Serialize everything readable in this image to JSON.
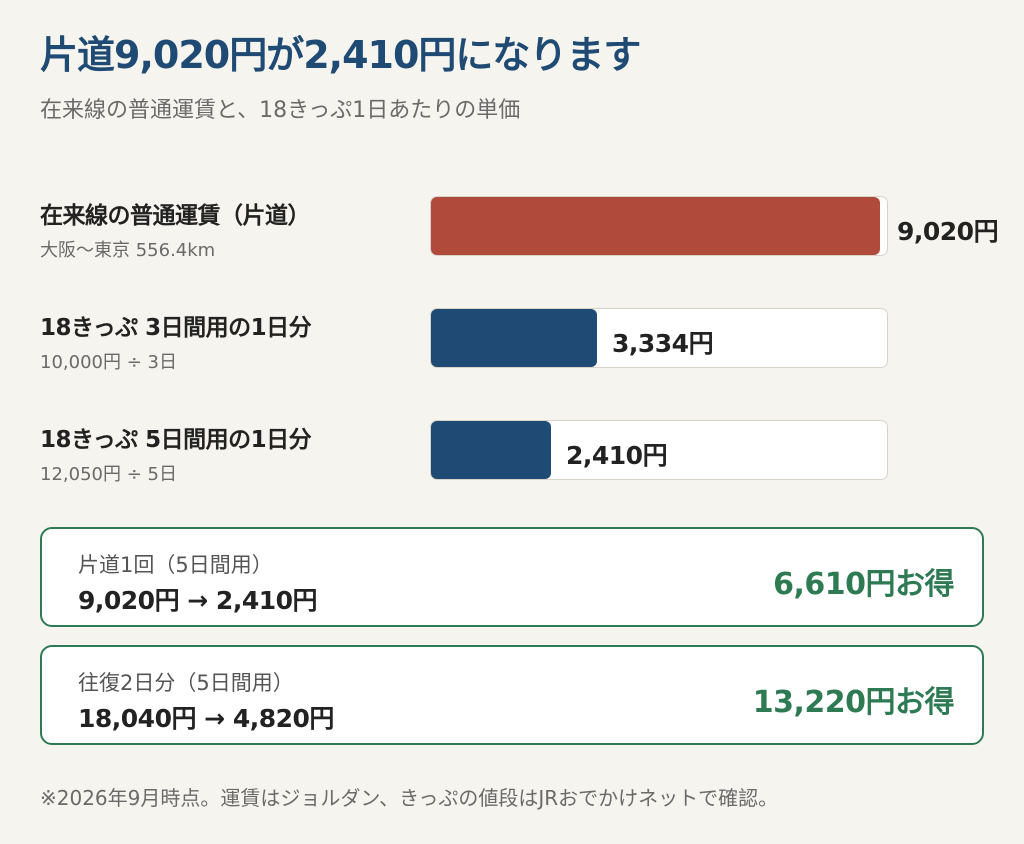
{
  "title": "片道9,020円が2,410円になります",
  "subtitle": "在来線の普通運賃と、18きっぷ1日あたりの単価",
  "colors": {
    "fare": "#b04a3a",
    "ticket": "#1f4a73",
    "saving": "#2e7a53"
  },
  "chart_data": {
    "type": "bar",
    "orientation": "horizontal",
    "categories": [
      "在来線の普通運賃（片道）",
      "18きっぷ 3日間用の1日分",
      "18きっぷ 5日間用の1日分"
    ],
    "sublabels": [
      "大阪〜東京 556.4km",
      "10,000円 ÷ 3日",
      "12,050円 ÷ 5日"
    ],
    "values": [
      9020,
      3334,
      2410
    ],
    "value_labels": [
      "9,020円",
      "3,334円",
      "2,410円"
    ],
    "xlim": [
      0,
      9200
    ],
    "grid": false
  },
  "savings": [
    {
      "label": "片道1回（5日間用）",
      "calc": "9,020円 → 2,410円",
      "result": "6,610円お得"
    },
    {
      "label": "往復2日分（5日間用）",
      "calc": "18,040円 → 4,820円",
      "result": "13,220円お得"
    }
  ],
  "footnote": "※2026年9月時点。運賃はジョルダン、きっぷの値段はJRおでかけネットで確認。"
}
